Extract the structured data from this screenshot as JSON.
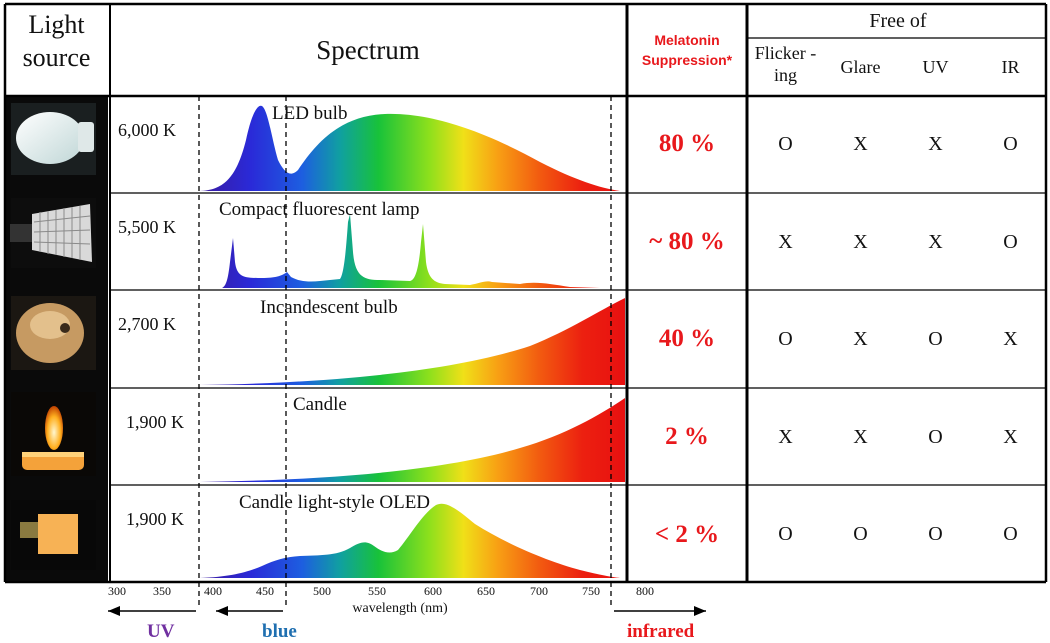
{
  "header": {
    "light_source": "Light source",
    "spectrum": "Spectrum",
    "melatonin": "Melatonin Suppression*",
    "free_of": "Free of",
    "free_cols": [
      "Flicker -ing",
      "Glare",
      "UV",
      "IR"
    ]
  },
  "rows": [
    {
      "temp": "6,000 K",
      "name": "LED bulb",
      "melatonin": "80 %",
      "free": [
        "O",
        "X",
        "X",
        "O"
      ]
    },
    {
      "temp": "5,500 K",
      "name": "Compact fluorescent lamp",
      "melatonin": "~ 80 %",
      "free": [
        "X",
        "X",
        "X",
        "O"
      ]
    },
    {
      "temp": "2,700 K",
      "name": "Incandescent bulb",
      "melatonin": "40 %",
      "free": [
        "O",
        "X",
        "O",
        "X"
      ]
    },
    {
      "temp": "1,900 K",
      "name": "Candle",
      "melatonin": "2 %",
      "free": [
        "X",
        "X",
        "O",
        "X"
      ]
    },
    {
      "temp": "1,900 K",
      "name": "Candle light-style OLED",
      "melatonin": "< 2 %",
      "free": [
        "O",
        "O",
        "O",
        "O"
      ]
    }
  ],
  "axis": {
    "ticks": [
      "300",
      "350",
      "400",
      "450",
      "500",
      "550",
      "600",
      "650",
      "700",
      "750",
      "800"
    ],
    "label": "wavelength (nm)"
  },
  "bands": {
    "uv": "UV",
    "blue": "blue",
    "infrared": "infrared"
  },
  "colors": {
    "red_text": "#e8181c",
    "uv": "#7030a0",
    "blue": "#1f6fb0",
    "infrared": "#e8181c"
  }
}
